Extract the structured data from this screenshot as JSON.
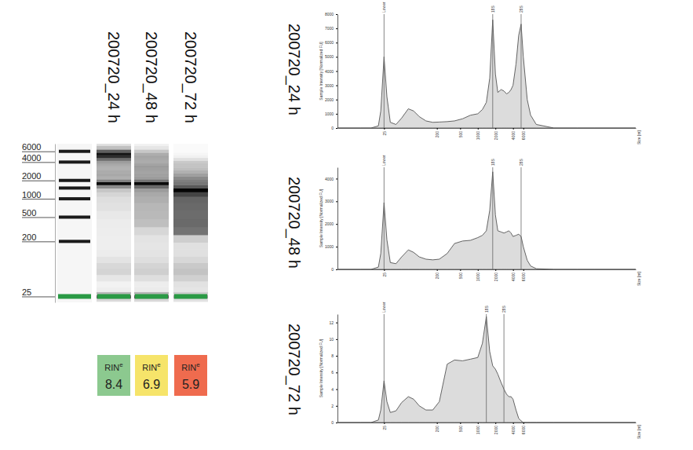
{
  "chart_data": [
    {
      "type": "gel",
      "categories": [
        "200720_24 h",
        "200720_48 h",
        "200720_72 h"
      ],
      "log": "y",
      "ylim": [
        20,
        8000
      ],
      "yticks": [
        25,
        200,
        500,
        1000,
        2000,
        4000,
        6000
      ],
      "ladder": [
        200,
        500,
        1000,
        1500,
        2000,
        4000,
        6000
      ],
      "lower_marker": {
        "size": 25,
        "color": "#2a9a45"
      },
      "rin_label": "RIN",
      "rin_label_superscript": "e",
      "rin": [
        8.4,
        6.9,
        5.9
      ],
      "colors": [
        "#8cc98f",
        "#f6e46a",
        "#ef6b4e"
      ]
    },
    {
      "type": "area",
      "title": "200720_24 h",
      "x_label": "Size [nt]",
      "y_label": "Sample Intensity [Normalized FU]",
      "log": "x",
      "xlim": [
        4,
        500000
      ],
      "xticks": [
        25,
        200,
        500,
        1000,
        2000,
        4000,
        6000
      ],
      "ylim": [
        0,
        8000
      ],
      "yticks": [
        0,
        1000,
        2000,
        3000,
        4000,
        5000,
        6000,
        7000,
        8000
      ],
      "color": "#dcdcdc",
      "x": [
        4,
        10,
        15,
        20,
        22,
        25,
        28,
        32,
        40,
        50,
        65,
        80,
        100,
        130,
        170,
        220,
        300,
        400,
        550,
        750,
        1000,
        1200,
        1400,
        1600,
        1800,
        2000,
        2200,
        2500,
        2800,
        3100,
        3400,
        3700,
        4000,
        4500,
        5000,
        5500,
        6000,
        7000,
        8000,
        10000,
        20000,
        50000,
        100000,
        500000
      ],
      "values": [
        0,
        0,
        0,
        150,
        1200,
        5000,
        2200,
        400,
        250,
        700,
        1350,
        1200,
        800,
        500,
        400,
        420,
        450,
        500,
        650,
        900,
        1000,
        1300,
        1800,
        3500,
        7600,
        3800,
        2500,
        2700,
        2600,
        2400,
        2500,
        2700,
        3000,
        4500,
        6500,
        7300,
        5000,
        2000,
        900,
        250,
        0,
        0,
        0,
        0
      ],
      "peaks": [
        {
          "x": 25,
          "label": "Lower"
        },
        {
          "x": 1800,
          "label": "18S"
        },
        {
          "x": 5500,
          "label": "28S"
        }
      ]
    },
    {
      "type": "area",
      "title": "200720_48 h",
      "x_label": "Size [nt]",
      "y_label": "Sample Intensity [Normalized FU]",
      "log": "x",
      "xlim": [
        4,
        500000
      ],
      "xticks": [
        25,
        200,
        500,
        1000,
        2000,
        4000,
        6000
      ],
      "ylim": [
        0,
        4500
      ],
      "yticks": [
        0,
        1000,
        2000,
        3000,
        4000
      ],
      "color": "#dcdcdc",
      "x": [
        4,
        10,
        15,
        20,
        22,
        25,
        28,
        32,
        40,
        50,
        65,
        80,
        100,
        130,
        170,
        220,
        300,
        400,
        550,
        750,
        1000,
        1200,
        1400,
        1600,
        1800,
        2000,
        2200,
        2500,
        2800,
        3100,
        3400,
        3700,
        4000,
        4500,
        5000,
        5500,
        6000,
        7000,
        8000,
        10000,
        20000,
        50000,
        100000,
        500000
      ],
      "values": [
        0,
        0,
        0,
        100,
        700,
        2940,
        1300,
        300,
        250,
        550,
        860,
        750,
        550,
        450,
        420,
        450,
        700,
        1140,
        1250,
        1280,
        1400,
        1500,
        1700,
        2600,
        4300,
        2400,
        1700,
        1650,
        1600,
        1650,
        1700,
        1600,
        1450,
        1500,
        1550,
        1450,
        1000,
        400,
        150,
        30,
        0,
        0,
        0,
        0
      ],
      "peaks": [
        {
          "x": 25,
          "label": "Lower"
        },
        {
          "x": 1800,
          "label": "18S"
        },
        {
          "x": 5500,
          "label": "28S"
        }
      ]
    },
    {
      "type": "area",
      "title": "200720_72 h",
      "x_label": "Size [nt]",
      "y_label": "Sample Intensity [Normalized FU]",
      "log": "x",
      "xlim": [
        4,
        500000
      ],
      "xticks": [
        25,
        200,
        500,
        1000,
        2000,
        4000,
        6000
      ],
      "ylim": [
        0,
        13
      ],
      "yticks": [
        0,
        2,
        4,
        6,
        8,
        10,
        12
      ],
      "color": "#dcdcdc",
      "x": [
        4,
        10,
        15,
        20,
        22,
        25,
        28,
        32,
        40,
        50,
        65,
        80,
        100,
        130,
        170,
        220,
        300,
        400,
        550,
        750,
        1000,
        1200,
        1400,
        1600,
        1800,
        2000,
        2200,
        2500,
        2800,
        3100,
        3400,
        3700,
        4000,
        4500,
        5000,
        5500,
        6000,
        7000,
        8000,
        10000,
        20000,
        50000,
        100000,
        500000
      ],
      "values": [
        0,
        0,
        0,
        0.3,
        1.5,
        5,
        2.5,
        1.2,
        1.4,
        2.4,
        3.1,
        2.8,
        2.0,
        1.5,
        1.5,
        2.5,
        7.0,
        7.5,
        7.4,
        7.6,
        7.8,
        9.5,
        12.7,
        8.5,
        6.8,
        6.4,
        5.8,
        4.8,
        4.0,
        3.4,
        3.1,
        3.1,
        2.8,
        1.5,
        0.5,
        0.2,
        0,
        0,
        0,
        0,
        0,
        0,
        0,
        0
      ],
      "peaks": [
        {
          "x": 25,
          "label": "Lower"
        },
        {
          "x": 1400,
          "label": "18S"
        },
        {
          "x": 2800,
          "label": "28S"
        }
      ]
    }
  ]
}
